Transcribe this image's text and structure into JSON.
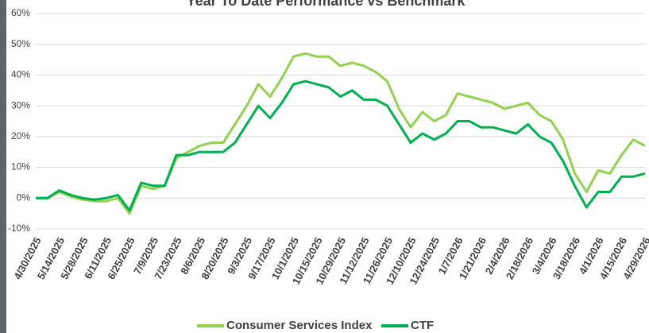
{
  "chart_data": {
    "type": "line",
    "title": "Year To Date Performance vs Benchmark",
    "categories": [
      "4/30/2025",
      null,
      "5/14/2025",
      null,
      "5/28/2025",
      null,
      "6/11/2025",
      null,
      "6/25/2025",
      null,
      "7/9/2025",
      null,
      "7/23/2025",
      null,
      "8/6/2025",
      null,
      "8/20/2025",
      null,
      "9/3/2025",
      null,
      "9/17/2025",
      null,
      "10/1/2025",
      null,
      "10/15/2025",
      null,
      "10/29/2025",
      null,
      "11/12/2025",
      null,
      "11/26/2025",
      null,
      "12/10/2025",
      null,
      "12/24/2025",
      null,
      "1/7/2026",
      null,
      "1/21/2026",
      null,
      "2/4/2026",
      null,
      "2/18/2026",
      null,
      "3/4/2026",
      null,
      "3/18/2026",
      null,
      "4/1/2026",
      null,
      "4/15/2026",
      null,
      "4/29/2026"
    ],
    "series": [
      {
        "name": "Consumer Services Index",
        "color": "#92d050",
        "values": [
          0,
          0,
          2,
          0.5,
          -0.5,
          -1,
          -1,
          0,
          -5,
          4,
          3,
          4,
          13,
          15,
          17,
          18,
          18,
          24,
          30,
          37,
          33,
          39,
          46,
          47,
          46,
          46,
          43,
          44,
          43,
          41,
          38,
          29,
          23,
          28,
          25,
          27,
          34,
          33,
          32,
          31,
          29,
          30,
          31,
          27,
          25,
          19,
          8,
          2,
          9,
          8,
          14,
          19,
          17
        ]
      },
      {
        "name": "CTF",
        "color": "#00b050",
        "values": [
          0,
          0,
          2.5,
          1,
          0,
          -0.5,
          0,
          1,
          -4,
          5,
          4,
          4,
          14,
          14,
          15,
          15,
          15,
          18,
          24,
          30,
          26,
          31,
          37,
          38,
          37,
          36,
          33,
          35,
          32,
          32,
          30,
          24,
          18,
          21,
          19,
          21,
          25,
          25,
          23,
          23,
          22,
          21,
          24,
          20,
          18,
          12,
          4,
          -3,
          2,
          2,
          7,
          7,
          8
        ]
      }
    ],
    "ylim": [
      -10,
      60
    ],
    "yticks": [
      {
        "value": -10,
        "label": "-10%"
      },
      {
        "value": 0,
        "label": "0%"
      },
      {
        "value": 10,
        "label": "10%"
      },
      {
        "value": 20,
        "label": "20%"
      },
      {
        "value": 30,
        "label": "30%"
      },
      {
        "value": 40,
        "label": "40%"
      },
      {
        "value": 50,
        "label": "50%"
      },
      {
        "value": 60,
        "label": "60%"
      }
    ],
    "grid": true
  }
}
